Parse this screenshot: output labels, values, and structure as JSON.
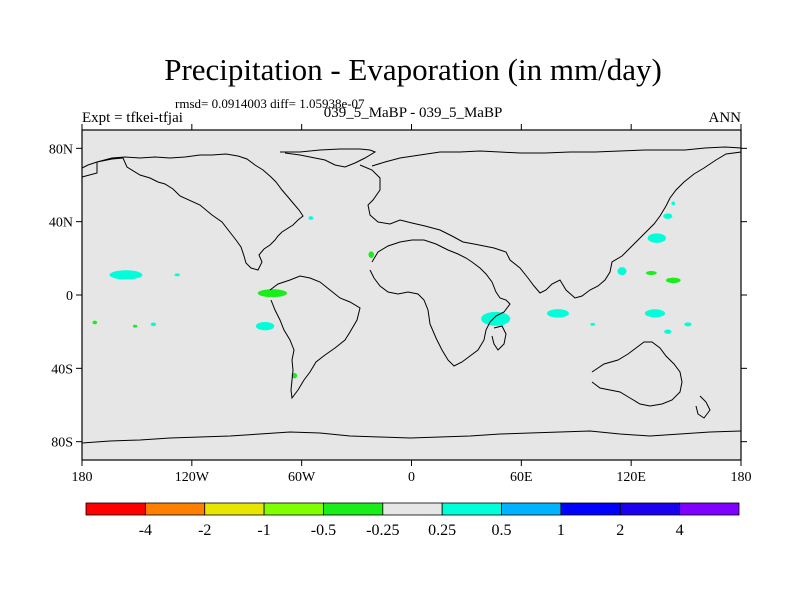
{
  "title": "Precipitation - Evaporation (in mm/day)",
  "subtitle_stats": "rmsd= 0.0914003 diff= 1.05938e-07",
  "left_label": "Expt = tfkei-tfjai",
  "center_label": "039_5_MaBP - 039_5_MaBP",
  "right_label": "ANN",
  "colors": {
    "land_fill": "#e6e6e6",
    "coastline": "#000000",
    "cyan_anomaly": "#00ffd9",
    "green_anomaly": "#1aee1a",
    "light_green_anomaly": "#80ff00"
  },
  "chart_data": {
    "type": "heatmap",
    "projection": "cylindrical-equidistant",
    "xlim": [
      -180,
      180
    ],
    "ylim": [
      -90,
      90
    ],
    "x_ticks": [
      {
        "value": -180,
        "label": "180"
      },
      {
        "value": -120,
        "label": "120W"
      },
      {
        "value": -60,
        "label": "60W"
      },
      {
        "value": 0,
        "label": "0"
      },
      {
        "value": 60,
        "label": "60E"
      },
      {
        "value": 120,
        "label": "120E"
      },
      {
        "value": 180,
        "label": "180"
      }
    ],
    "y_ticks": [
      {
        "value": 80,
        "label": "80N"
      },
      {
        "value": 40,
        "label": "40N"
      },
      {
        "value": 0,
        "label": "0"
      },
      {
        "value": -40,
        "label": "40S"
      },
      {
        "value": -80,
        "label": "80S"
      }
    ],
    "colorbar": {
      "colors": [
        "#ff0000",
        "#ff8000",
        "#e6e600",
        "#80ff00",
        "#1aee1a",
        "#e6e6e6",
        "#00ffd9",
        "#00b2ff",
        "#0000ff",
        "#1a00ee",
        "#8000ff"
      ],
      "labels": [
        "-4",
        "-2",
        "-1",
        "-0.5",
        "-0.25",
        "0.25",
        "0.5",
        "1",
        "2",
        "4"
      ]
    },
    "anomalies": [
      {
        "lon": -156,
        "lat": 11,
        "rlon": 9,
        "rlat": 2.5,
        "level": "0.25 to 0.5"
      },
      {
        "lon": -128,
        "lat": 11,
        "rlon": 1.5,
        "rlat": 0.8,
        "level": "0.25 to 0.5"
      },
      {
        "lon": -76,
        "lat": 1,
        "rlon": 8,
        "rlat": 2.2,
        "level": "-0.5 to -0.25"
      },
      {
        "lon": -80,
        "lat": -17,
        "rlon": 5,
        "rlat": 2.3,
        "level": "0.25 to 0.5"
      },
      {
        "lon": -173,
        "lat": -15,
        "rlon": 1.3,
        "rlat": 1,
        "level": "-0.5 to -0.25"
      },
      {
        "lon": -151,
        "lat": -17,
        "rlon": 1.2,
        "rlat": 0.8,
        "level": "-0.5 to -0.25"
      },
      {
        "lon": -141,
        "lat": -16,
        "rlon": 1.5,
        "rlat": 1,
        "level": "0.25 to 0.5"
      },
      {
        "lon": -64,
        "lat": -44,
        "rlon": 1.5,
        "rlat": 1.5,
        "level": "-0.5 to -0.25"
      },
      {
        "lon": -55,
        "lat": 42,
        "rlon": 1.3,
        "rlat": 1,
        "level": "0.25 to 0.5"
      },
      {
        "lon": -22,
        "lat": 22,
        "rlon": 1.5,
        "rlat": 1.8,
        "level": "-0.5 to -0.25"
      },
      {
        "lon": 46,
        "lat": -13,
        "rlon": 8,
        "rlat": 3.8,
        "level": "0.25 to 0.5"
      },
      {
        "lon": 80,
        "lat": -10,
        "rlon": 6,
        "rlat": 2.3,
        "level": "0.25 to 0.5"
      },
      {
        "lon": 99,
        "lat": -16,
        "rlon": 1.3,
        "rlat": 0.8,
        "level": "0.25 to 0.5"
      },
      {
        "lon": 115,
        "lat": 13,
        "rlon": 2.5,
        "rlat": 2.2,
        "level": "0.25 to 0.5"
      },
      {
        "lon": 131,
        "lat": 12,
        "rlon": 3,
        "rlat": 1.1,
        "level": "-0.5 to -0.25"
      },
      {
        "lon": 143,
        "lat": 8,
        "rlon": 4,
        "rlat": 1.5,
        "level": "-0.5 to -0.25"
      },
      {
        "lon": 134,
        "lat": 31,
        "rlon": 5,
        "rlat": 2.6,
        "level": "0.25 to 0.5"
      },
      {
        "lon": 140,
        "lat": 43,
        "rlon": 2.5,
        "rlat": 1.5,
        "level": "0.25 to 0.5"
      },
      {
        "lon": 143,
        "lat": 50,
        "rlon": 1,
        "rlat": 1,
        "level": "0.25 to 0.5"
      },
      {
        "lon": 133,
        "lat": -10,
        "rlon": 5.5,
        "rlat": 2.2,
        "level": "0.25 to 0.5"
      },
      {
        "lon": 151,
        "lat": -16,
        "rlon": 2,
        "rlat": 1.1,
        "level": "0.25 to 0.5"
      },
      {
        "lon": 140,
        "lat": -20,
        "rlon": 2,
        "rlat": 1.2,
        "level": "0.25 to 0.5"
      }
    ]
  }
}
